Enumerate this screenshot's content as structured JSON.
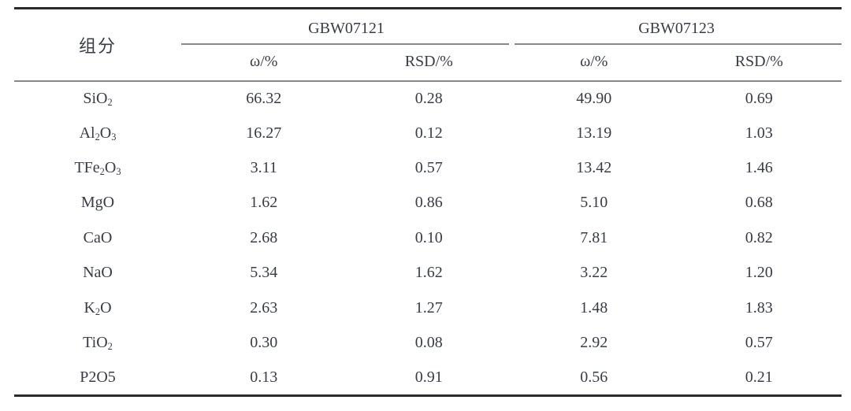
{
  "table": {
    "component_header": "组分",
    "groups": [
      {
        "name": "GBW07121",
        "subheaders": [
          "ω/%",
          "RSD/%"
        ]
      },
      {
        "name": "GBW07123",
        "subheaders": [
          "ω/%",
          "RSD/%"
        ]
      }
    ],
    "rows": [
      {
        "component": [
          [
            "SiO",
            false
          ],
          [
            "2",
            true
          ]
        ],
        "values": [
          "66.32",
          "0.28",
          "49.90",
          "0.69"
        ]
      },
      {
        "component": [
          [
            "Al",
            false
          ],
          [
            "2",
            true
          ],
          [
            "O",
            false
          ],
          [
            "3",
            true
          ]
        ],
        "values": [
          "16.27",
          "0.12",
          "13.19",
          "1.03"
        ]
      },
      {
        "component": [
          [
            "TFe",
            false
          ],
          [
            "2",
            true
          ],
          [
            "O",
            false
          ],
          [
            "3",
            true
          ]
        ],
        "values": [
          "3.11",
          "0.57",
          "13.42",
          "1.46"
        ]
      },
      {
        "component": [
          [
            "MgO",
            false
          ]
        ],
        "values": [
          "1.62",
          "0.86",
          "5.10",
          "0.68"
        ]
      },
      {
        "component": [
          [
            "CaO",
            false
          ]
        ],
        "values": [
          "2.68",
          "0.10",
          "7.81",
          "0.82"
        ]
      },
      {
        "component": [
          [
            "NaO",
            false
          ]
        ],
        "values": [
          "5.34",
          "1.62",
          "3.22",
          "1.20"
        ]
      },
      {
        "component": [
          [
            "K",
            false
          ],
          [
            "2",
            true
          ],
          [
            "O",
            false
          ]
        ],
        "values": [
          "2.63",
          "1.27",
          "1.48",
          "1.83"
        ]
      },
      {
        "component": [
          [
            "TiO",
            false
          ],
          [
            "2",
            true
          ]
        ],
        "values": [
          "0.30",
          "0.08",
          "2.92",
          "0.57"
        ]
      },
      {
        "component": [
          [
            "P2O5",
            false
          ]
        ],
        "values": [
          "0.13",
          "0.91",
          "0.56",
          "0.21"
        ]
      }
    ],
    "colors": {
      "text": "#383c44",
      "rule_heavy": "#2b2b2d",
      "rule_light": "#87888a",
      "background": "#ffffff"
    },
    "chart_data": {
      "type": "table",
      "columns": [
        "组分",
        "GBW07121 ω/%",
        "GBW07121 RSD/%",
        "GBW07123 ω/%",
        "GBW07123 RSD/%"
      ],
      "rows": [
        [
          "SiO2",
          66.32,
          0.28,
          49.9,
          0.69
        ],
        [
          "Al2O3",
          16.27,
          0.12,
          13.19,
          1.03
        ],
        [
          "TFe2O3",
          3.11,
          0.57,
          13.42,
          1.46
        ],
        [
          "MgO",
          1.62,
          0.86,
          5.1,
          0.68
        ],
        [
          "CaO",
          2.68,
          0.1,
          7.81,
          0.82
        ],
        [
          "NaO",
          5.34,
          1.62,
          3.22,
          1.2
        ],
        [
          "K2O",
          2.63,
          1.27,
          1.48,
          1.83
        ],
        [
          "TiO2",
          0.3,
          0.08,
          2.92,
          0.57
        ],
        [
          "P2O5",
          0.13,
          0.91,
          0.56,
          0.21
        ]
      ]
    }
  }
}
